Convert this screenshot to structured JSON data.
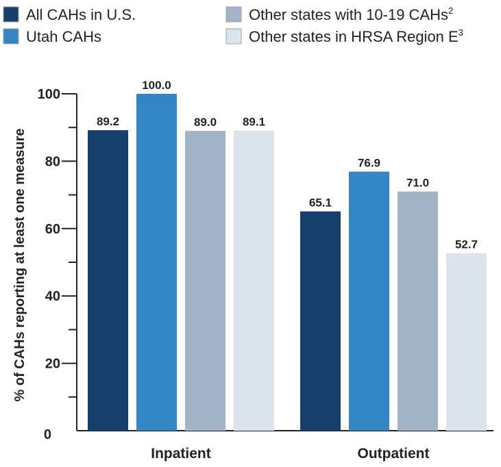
{
  "legend": {
    "items": [
      {
        "label": "All CAHs in U.S.",
        "sup": "",
        "color": "#173f6b"
      },
      {
        "label": "Utah CAHs",
        "sup": "",
        "color": "#3485c4"
      },
      {
        "label": "Other states with 10-19 CAHs",
        "sup": "2",
        "color": "#a3b3c6"
      },
      {
        "label": "Other states in HRSA Region E",
        "sup": "3",
        "color": "#dde3ec"
      }
    ]
  },
  "chart_data": {
    "type": "bar",
    "categories": [
      "Inpatient",
      "Outpatient"
    ],
    "series": [
      {
        "name": "All CAHs in U.S.",
        "color": "#173f6b",
        "values": [
          89.2,
          65.1
        ]
      },
      {
        "name": "Utah CAHs",
        "color": "#3485c4",
        "values": [
          100.0,
          76.9
        ]
      },
      {
        "name": "Other states with 10-19 CAHs",
        "color": "#a3b3c6",
        "values": [
          89.0,
          71.0
        ]
      },
      {
        "name": "Other states in HRSA Region E",
        "color": "#dde3ec",
        "values": [
          89.1,
          52.7
        ]
      }
    ],
    "value_labels": [
      [
        "89.2",
        "65.1"
      ],
      [
        "100.0",
        "76.9"
      ],
      [
        "89.0",
        "71.0"
      ],
      [
        "89.1",
        "52.7"
      ]
    ],
    "ylabel": "% of CAHs reporting at least one measure",
    "ylim": [
      0,
      100
    ],
    "yticks": [
      "0",
      "20",
      "40",
      "60",
      "80",
      "100"
    ],
    "grid": false,
    "legend_position": "top"
  }
}
